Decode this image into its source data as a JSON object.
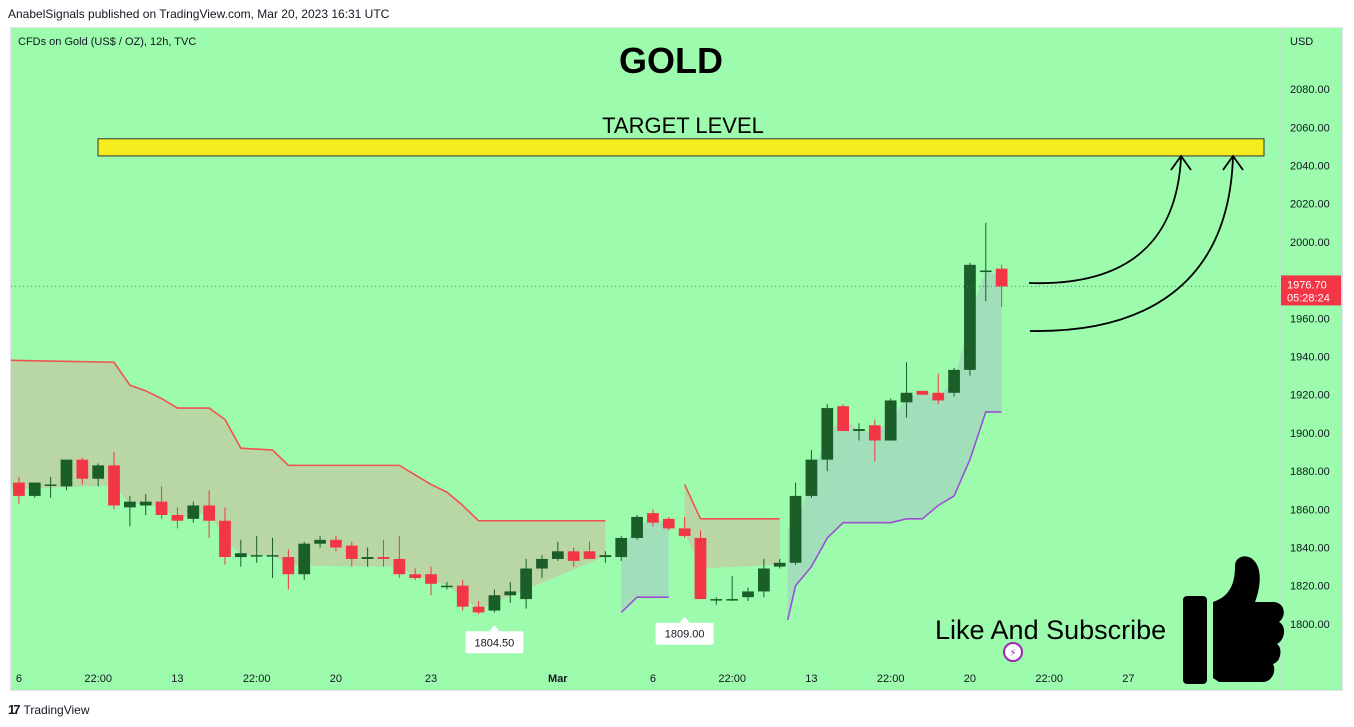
{
  "header": {
    "published_text": "AnabelSignals published on TradingView.com, Mar 20, 2023 16:31 UTC"
  },
  "footer": {
    "brand": "TradingView",
    "icon": "tradingview-logo-icon"
  },
  "chart_data": {
    "type": "candlestick",
    "symbol_label": "CFDs on Gold (US$ / OZ), 12h, TVC",
    "title": "GOLD",
    "annotations": {
      "target_label": "TARGET LEVEL",
      "target_zone": [
        2045,
        2054
      ],
      "cta_text": "Like And Subscribe",
      "cta_icon": "thumbs-up-icon",
      "low_labels": [
        {
          "text": "1804.50",
          "value": 1804.5,
          "bar": 30
        },
        {
          "text": "1809.00",
          "value": 1809.0,
          "bar": 42
        }
      ]
    },
    "y_axis": {
      "unit": "USD",
      "ticks": [
        1800,
        1820,
        1840,
        1860,
        1880,
        1900,
        1920,
        1940,
        1960,
        1980,
        2000,
        2020,
        2040,
        2060,
        2080
      ],
      "tick_labels": [
        "1800.00",
        "1820.00",
        "1840.00",
        "1860.00",
        "1880.00",
        "1900.00",
        "1920.00",
        "1940.00",
        "1960.00",
        "1980.00",
        "2000.00",
        "2020.00",
        "2040.00",
        "2060.00",
        "2080.00"
      ],
      "range": [
        1779,
        2112
      ]
    },
    "x_axis": {
      "ticks": [
        {
          "label": "6",
          "bar": 0
        },
        {
          "label": "22:00",
          "bar": 5
        },
        {
          "label": "13",
          "bar": 10
        },
        {
          "label": "22:00",
          "bar": 15
        },
        {
          "label": "20",
          "bar": 20
        },
        {
          "label": "23",
          "bar": 26
        },
        {
          "label": "Mar",
          "bar": 34
        },
        {
          "label": "6",
          "bar": 40
        },
        {
          "label": "22:00",
          "bar": 45
        },
        {
          "label": "13",
          "bar": 50
        },
        {
          "label": "22:00",
          "bar": 55
        },
        {
          "label": "20",
          "bar": 60
        },
        {
          "label": "22:00",
          "bar": 65
        },
        {
          "label": "27",
          "bar": 70
        }
      ],
      "bar_range": [
        -0.5,
        79.5
      ]
    },
    "last_price": {
      "value": 1976.7,
      "text": "1976.70",
      "countdown": "05:28:24",
      "color": "#f23645"
    },
    "candles": [
      {
        "o": 1874,
        "h": 1877,
        "l": 1863,
        "c": 1867
      },
      {
        "o": 1867,
        "h": 1874,
        "l": 1866,
        "c": 1874
      },
      {
        "o": 1873,
        "h": 1877,
        "l": 1866,
        "c": 1873
      },
      {
        "o": 1872,
        "h": 1886,
        "l": 1870,
        "c": 1886
      },
      {
        "o": 1886,
        "h": 1887,
        "l": 1873,
        "c": 1876
      },
      {
        "o": 1876,
        "h": 1884,
        "l": 1872,
        "c": 1883
      },
      {
        "o": 1883,
        "h": 1890,
        "l": 1860,
        "c": 1862
      },
      {
        "o": 1861,
        "h": 1867,
        "l": 1851,
        "c": 1864
      },
      {
        "o": 1862,
        "h": 1868,
        "l": 1857,
        "c": 1864
      },
      {
        "o": 1864,
        "h": 1872,
        "l": 1855,
        "c": 1857
      },
      {
        "o": 1857,
        "h": 1861,
        "l": 1850,
        "c": 1854
      },
      {
        "o": 1855,
        "h": 1864,
        "l": 1853,
        "c": 1862
      },
      {
        "o": 1862,
        "h": 1870,
        "l": 1845,
        "c": 1854
      },
      {
        "o": 1854,
        "h": 1861,
        "l": 1831,
        "c": 1835
      },
      {
        "o": 1835,
        "h": 1844,
        "l": 1830,
        "c": 1837
      },
      {
        "o": 1836,
        "h": 1846,
        "l": 1832,
        "c": 1836
      },
      {
        "o": 1836,
        "h": 1845,
        "l": 1824,
        "c": 1836
      },
      {
        "o": 1835,
        "h": 1839,
        "l": 1818,
        "c": 1826
      },
      {
        "o": 1826,
        "h": 1843,
        "l": 1823,
        "c": 1842
      },
      {
        "o": 1842,
        "h": 1846,
        "l": 1840,
        "c": 1844
      },
      {
        "o": 1844,
        "h": 1846,
        "l": 1838,
        "c": 1840
      },
      {
        "o": 1841,
        "h": 1843,
        "l": 1830,
        "c": 1834
      },
      {
        "o": 1834,
        "h": 1840,
        "l": 1830,
        "c": 1835
      },
      {
        "o": 1835,
        "h": 1844,
        "l": 1830,
        "c": 1834
      },
      {
        "o": 1834,
        "h": 1846,
        "l": 1824,
        "c": 1826
      },
      {
        "o": 1826,
        "h": 1829,
        "l": 1823,
        "c": 1824
      },
      {
        "o": 1826,
        "h": 1830,
        "l": 1815,
        "c": 1821
      },
      {
        "o": 1820,
        "h": 1822,
        "l": 1818,
        "c": 1820
      },
      {
        "o": 1820,
        "h": 1823,
        "l": 1807,
        "c": 1809
      },
      {
        "o": 1809,
        "h": 1812,
        "l": 1805,
        "c": 1806
      },
      {
        "o": 1807,
        "h": 1818,
        "l": 1806,
        "c": 1815
      },
      {
        "o": 1815,
        "h": 1822,
        "l": 1811,
        "c": 1817
      },
      {
        "o": 1813,
        "h": 1834,
        "l": 1808,
        "c": 1829
      },
      {
        "o": 1829,
        "h": 1836,
        "l": 1824,
        "c": 1834
      },
      {
        "o": 1834,
        "h": 1843,
        "l": 1833,
        "c": 1838
      },
      {
        "o": 1838,
        "h": 1840,
        "l": 1830,
        "c": 1833
      },
      {
        "o": 1838,
        "h": 1843,
        "l": 1834,
        "c": 1834
      },
      {
        "o": 1835,
        "h": 1838,
        "l": 1832,
        "c": 1836
      },
      {
        "o": 1835,
        "h": 1846,
        "l": 1833,
        "c": 1845
      },
      {
        "o": 1845,
        "h": 1857,
        "l": 1844,
        "c": 1856
      },
      {
        "o": 1858,
        "h": 1860,
        "l": 1851,
        "c": 1853
      },
      {
        "o": 1855,
        "h": 1856,
        "l": 1849,
        "c": 1850
      },
      {
        "o": 1850,
        "h": 1856,
        "l": 1845,
        "c": 1846
      },
      {
        "o": 1845,
        "h": 1849,
        "l": 1813,
        "c": 1813
      },
      {
        "o": 1813,
        "h": 1814,
        "l": 1810,
        "c": 1813
      },
      {
        "o": 1813,
        "h": 1825,
        "l": 1812,
        "c": 1813
      },
      {
        "o": 1814,
        "h": 1819,
        "l": 1812,
        "c": 1817
      },
      {
        "o": 1817,
        "h": 1834,
        "l": 1814,
        "c": 1829
      },
      {
        "o": 1830,
        "h": 1834,
        "l": 1829,
        "c": 1832
      },
      {
        "o": 1832,
        "h": 1874,
        "l": 1831,
        "c": 1867
      },
      {
        "o": 1867,
        "h": 1891,
        "l": 1866,
        "c": 1886
      },
      {
        "o": 1886,
        "h": 1915,
        "l": 1880,
        "c": 1913
      },
      {
        "o": 1914,
        "h": 1915,
        "l": 1901,
        "c": 1901
      },
      {
        "o": 1901,
        "h": 1905,
        "l": 1896,
        "c": 1902
      },
      {
        "o": 1904,
        "h": 1907,
        "l": 1885,
        "c": 1896
      },
      {
        "o": 1896,
        "h": 1918,
        "l": 1896,
        "c": 1917
      },
      {
        "o": 1916,
        "h": 1937,
        "l": 1908,
        "c": 1921
      },
      {
        "o": 1922,
        "h": 1922,
        "l": 1920,
        "c": 1920
      },
      {
        "o": 1921,
        "h": 1931,
        "l": 1915,
        "c": 1917
      },
      {
        "o": 1921,
        "h": 1934,
        "l": 1919,
        "c": 1933
      },
      {
        "o": 1933,
        "h": 1989,
        "l": 1930,
        "c": 1988
      },
      {
        "o": 1985,
        "h": 2010,
        "l": 1969,
        "c": 1985
      },
      {
        "o": 1986,
        "h": 1988,
        "l": 1966,
        "c": 1976.7
      }
    ],
    "supertrend_up": [
      [
        {
          "bar": 38,
          "value": 1806
        },
        {
          "bar": 39,
          "value": 1814
        },
        {
          "bar": 40,
          "value": 1814
        },
        {
          "bar": 41,
          "value": 1814
        }
      ],
      [
        {
          "bar": 48.5,
          "value": 1802
        },
        {
          "bar": 49,
          "value": 1820
        },
        {
          "bar": 50,
          "value": 1830
        },
        {
          "bar": 51,
          "value": 1845
        },
        {
          "bar": 52,
          "value": 1853
        },
        {
          "bar": 53,
          "value": 1853
        },
        {
          "bar": 54,
          "value": 1853
        },
        {
          "bar": 55,
          "value": 1853
        },
        {
          "bar": 56,
          "value": 1855
        },
        {
          "bar": 57,
          "value": 1855
        },
        {
          "bar": 58,
          "value": 1862
        },
        {
          "bar": 59,
          "value": 1867
        },
        {
          "bar": 60,
          "value": 1886
        },
        {
          "bar": 61,
          "value": 1911
        },
        {
          "bar": 62,
          "value": 1911
        }
      ]
    ],
    "supertrend_down": [
      [
        {
          "bar": -0.5,
          "value": 1938
        },
        {
          "bar": 6,
          "value": 1937
        },
        {
          "bar": 7,
          "value": 1925
        },
        {
          "bar": 8,
          "value": 1922
        },
        {
          "bar": 9,
          "value": 1918
        },
        {
          "bar": 10,
          "value": 1913
        },
        {
          "bar": 12,
          "value": 1913
        },
        {
          "bar": 13,
          "value": 1907
        },
        {
          "bar": 14,
          "value": 1892
        },
        {
          "bar": 16,
          "value": 1891
        },
        {
          "bar": 17,
          "value": 1883
        },
        {
          "bar": 24,
          "value": 1883
        },
        {
          "bar": 25,
          "value": 1878
        },
        {
          "bar": 26,
          "value": 1873
        },
        {
          "bar": 27,
          "value": 1869
        },
        {
          "bar": 28,
          "value": 1862
        },
        {
          "bar": 29,
          "value": 1854
        },
        {
          "bar": 37,
          "value": 1854
        }
      ],
      [
        {
          "bar": 42,
          "value": 1873
        },
        {
          "bar": 43,
          "value": 1855
        },
        {
          "bar": 48,
          "value": 1855
        }
      ]
    ]
  },
  "colors": {
    "background": "#9cfbac",
    "bull": "#1a5e2a",
    "bear": "#f23645",
    "supertrend_down_line": "#ef5350",
    "supertrend_up_line": "#9c4fd6",
    "down_fill": "#c3c9a3",
    "up_fill": "#a3d6c0",
    "target_zone": "#f5ec1f",
    "text": "#131722"
  }
}
